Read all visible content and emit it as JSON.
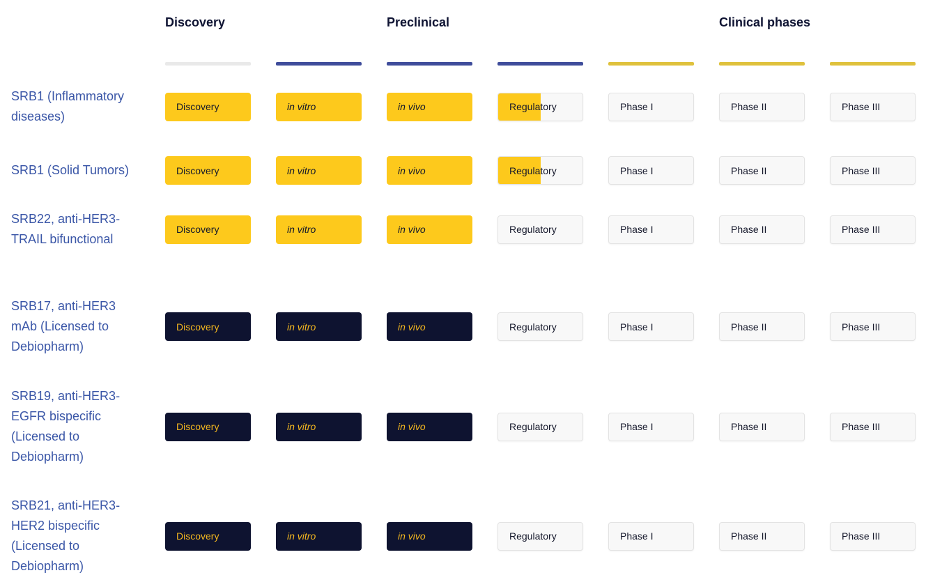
{
  "pipeline": {
    "group_headers": [
      {
        "label": "Discovery",
        "span": 1
      },
      {
        "label": "Preclinical",
        "span": 3
      },
      {
        "label": "Clinical phases",
        "span": 3
      }
    ],
    "columns": [
      {
        "id": "discovery",
        "label": "Discovery",
        "italic": false,
        "bar_color": "#E9E9E9"
      },
      {
        "id": "in-vitro",
        "label": "in vitro",
        "italic": true,
        "bar_color": "#3F4D9B"
      },
      {
        "id": "in-vivo",
        "label": "in vivo",
        "italic": true,
        "bar_color": "#3F4D9B"
      },
      {
        "id": "regulatory",
        "label": "Regulatory",
        "italic": false,
        "bar_color": "#3F4D9B"
      },
      {
        "id": "phase-i",
        "label": "Phase I",
        "italic": false,
        "bar_color": "#DFC13C"
      },
      {
        "id": "phase-ii",
        "label": "Phase II",
        "italic": false,
        "bar_color": "#DFC13C"
      },
      {
        "id": "phase-iii",
        "label": "Phase III",
        "italic": false,
        "bar_color": "#DFC13C"
      }
    ],
    "rows": [
      {
        "program": "SRB1 (Inflammatory diseases)",
        "stages": [
          "filled",
          "filled",
          "filled",
          "half",
          "empty",
          "empty",
          "empty"
        ]
      },
      {
        "program": "SRB1 (Solid Tumors)",
        "stages": [
          "filled",
          "filled",
          "filled",
          "half",
          "empty",
          "empty",
          "empty"
        ]
      },
      {
        "program": "SRB22, anti-HER3-TRAIL bifunctional",
        "stages": [
          "filled",
          "filled",
          "filled",
          "empty",
          "empty",
          "empty",
          "empty"
        ]
      },
      {
        "program": "SRB17, anti-HER3 mAb (Licensed to Debiopharm)",
        "stages": [
          "dark",
          "dark",
          "dark",
          "empty",
          "empty",
          "empty",
          "empty"
        ]
      },
      {
        "program": "SRB19, anti-HER3-EGFR bispecific (Licensed to Debiopharm)",
        "stages": [
          "dark",
          "dark",
          "dark",
          "empty",
          "empty",
          "empty",
          "empty"
        ]
      },
      {
        "program": "SRB21, anti-HER3-HER2 bispecific (Licensed to Debiopharm)",
        "stages": [
          "dark",
          "dark",
          "dark",
          "empty",
          "empty",
          "empty",
          "empty"
        ]
      }
    ]
  },
  "colors": {
    "stage_filled_bg": "#FDC91C",
    "stage_filled_text": "#14182B",
    "stage_dark_bg": "#0E1330",
    "stage_dark_text": "#F3B71F",
    "stage_empty_bg": "#F8F8F8",
    "stage_empty_border": "#E3E3E3",
    "stage_empty_text": "#15182B",
    "bar_discovery": "#E9E9E9",
    "bar_preclinical": "#3F4D9B",
    "bar_clinical": "#DFC13C",
    "program_link": "#3A56A7",
    "header_text": "#0F1433"
  },
  "chart_data": {
    "type": "table",
    "columns": [
      "Discovery",
      "in vitro",
      "in vivo",
      "Regulatory",
      "Phase I",
      "Phase II",
      "Phase III"
    ],
    "column_groups": [
      {
        "label": "Discovery",
        "columns": [
          "Discovery"
        ]
      },
      {
        "label": "Preclinical",
        "columns": [
          "in vitro",
          "in vivo",
          "Regulatory"
        ]
      },
      {
        "label": "Clinical phases",
        "columns": [
          "Phase I",
          "Phase II",
          "Phase III"
        ]
      }
    ],
    "rows": [
      {
        "program": "SRB1 (Inflammatory diseases)",
        "cell_style": "yellow",
        "progress": [
          1,
          1,
          1,
          0.5,
          0,
          0,
          0
        ]
      },
      {
        "program": "SRB1 (Solid Tumors)",
        "cell_style": "yellow",
        "progress": [
          1,
          1,
          1,
          0.5,
          0,
          0,
          0
        ]
      },
      {
        "program": "SRB22, anti-HER3-TRAIL bifunctional",
        "cell_style": "yellow",
        "progress": [
          1,
          1,
          1,
          0,
          0,
          0,
          0
        ]
      },
      {
        "program": "SRB17, anti-HER3 mAb (Licensed to Debiopharm)",
        "cell_style": "dark-navy",
        "progress": [
          1,
          1,
          1,
          0,
          0,
          0,
          0
        ]
      },
      {
        "program": "SRB19, anti-HER3-EGFR bispecific (Licensed to Debiopharm)",
        "cell_style": "dark-navy",
        "progress": [
          1,
          1,
          1,
          0,
          0,
          0,
          0
        ]
      },
      {
        "program": "SRB21, anti-HER3-HER2 bispecific (Licensed to Debiopharm)",
        "cell_style": "dark-navy",
        "progress": [
          1,
          1,
          1,
          0,
          0,
          0,
          0
        ]
      }
    ],
    "layout_hints": {
      "grid": false,
      "group_bar_colors": {
        "Discovery": "#E9E9E9",
        "Preclinical": "#3F4D9B",
        "Clinical phases": "#DFC13C"
      },
      "completed_stage_color": "#FDC91C",
      "licensed_program_stage_color": "#0E1330"
    }
  }
}
